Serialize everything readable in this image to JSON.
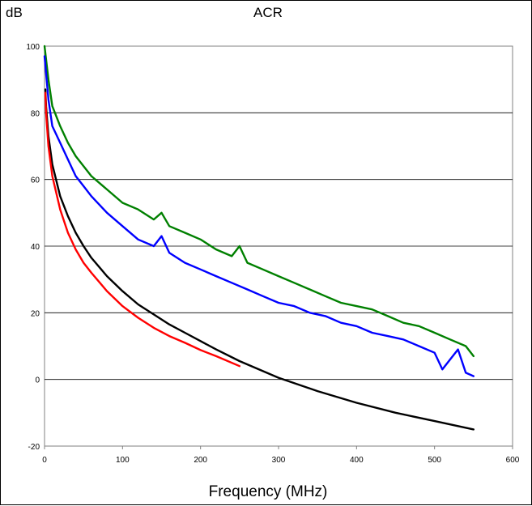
{
  "chart_data": {
    "type": "line",
    "title": "ACR",
    "xlabel": "Frequency (MHz)",
    "ylabel": "dB",
    "xlim": [
      0,
      600
    ],
    "ylim": [
      -20,
      100
    ],
    "xticks": [
      0,
      100,
      200,
      300,
      400,
      500,
      600
    ],
    "yticks": [
      -20,
      0,
      20,
      40,
      60,
      80,
      100
    ],
    "grid": "horizontal",
    "legend": "none",
    "series": [
      {
        "color": "#008000",
        "x": [
          0,
          5,
          10,
          20,
          30,
          40,
          50,
          60,
          80,
          100,
          120,
          140,
          150,
          160,
          180,
          200,
          220,
          240,
          250,
          260,
          280,
          300,
          320,
          340,
          360,
          380,
          400,
          420,
          440,
          460,
          480,
          500,
          520,
          540,
          550
        ],
        "y": [
          100,
          90,
          82,
          76,
          71,
          67,
          64,
          61,
          57,
          53,
          51,
          48,
          50,
          46,
          44,
          42,
          39,
          37,
          40,
          35,
          33,
          31,
          29,
          27,
          25,
          23,
          22,
          21,
          19,
          17,
          16,
          14,
          12,
          10,
          7
        ]
      },
      {
        "color": "#0000ff",
        "x": [
          0,
          5,
          10,
          20,
          30,
          40,
          50,
          60,
          80,
          100,
          120,
          140,
          150,
          160,
          180,
          200,
          220,
          240,
          260,
          280,
          300,
          320,
          340,
          360,
          380,
          400,
          420,
          440,
          460,
          480,
          500,
          510,
          520,
          530,
          540,
          550
        ],
        "y": [
          97,
          84,
          76,
          71,
          66,
          61,
          58,
          55,
          50,
          46,
          42,
          40,
          43,
          38,
          35,
          33,
          31,
          29,
          27,
          25,
          23,
          22,
          20,
          19,
          17,
          16,
          14,
          13,
          12,
          10,
          8,
          3,
          6,
          9,
          2,
          1
        ]
      },
      {
        "color": "#000000",
        "x": [
          1,
          2,
          5,
          10,
          20,
          30,
          40,
          50,
          60,
          80,
          100,
          120,
          140,
          160,
          180,
          200,
          220,
          250,
          300,
          350,
          400,
          450,
          500,
          550
        ],
        "y": [
          87,
          82,
          73,
          64.5,
          55,
          49,
          44,
          40,
          36.5,
          31,
          26.5,
          22.5,
          19.5,
          16.5,
          14,
          11.5,
          9,
          5.5,
          0.5,
          -3.5,
          -7,
          -10,
          -12.5,
          -15
        ]
      },
      {
        "color": "#ff0000",
        "x": [
          1,
          2,
          5,
          10,
          20,
          30,
          40,
          50,
          60,
          80,
          100,
          120,
          140,
          160,
          180,
          200,
          220,
          250
        ],
        "y": [
          86,
          80,
          70,
          61,
          51,
          44,
          39,
          35,
          32,
          26.5,
          22,
          18.5,
          15.5,
          13,
          11,
          8.8,
          7,
          4
        ]
      }
    ]
  }
}
